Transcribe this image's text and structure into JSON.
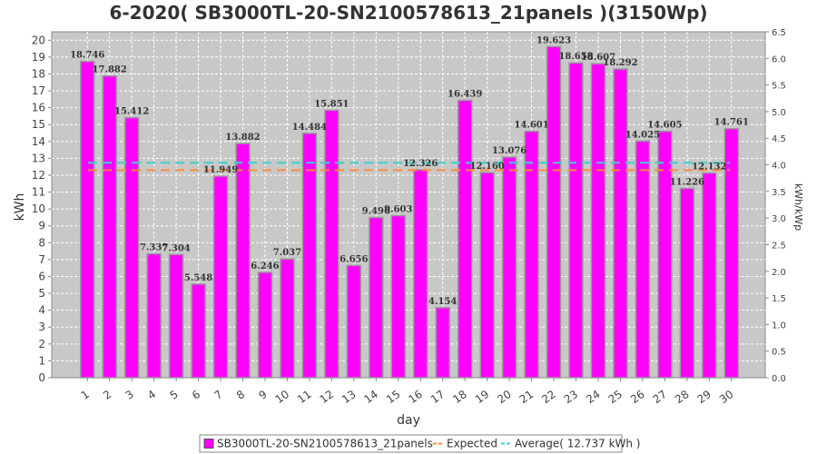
{
  "chart_data": {
    "type": "bar",
    "title": "6-2020( SB3000TL-20-SN2100578613_21panels )(3150Wp)",
    "xlabel": "day",
    "ylabel": "kWh",
    "y2label": "kWh/kWp",
    "categories": [
      "1",
      "2",
      "3",
      "4",
      "5",
      "6",
      "7",
      "8",
      "9",
      "10",
      "11",
      "12",
      "13",
      "14",
      "15",
      "16",
      "17",
      "18",
      "19",
      "20",
      "21",
      "22",
      "23",
      "24",
      "25",
      "26",
      "27",
      "28",
      "29",
      "30"
    ],
    "series": [
      {
        "name": "SB3000TL-20-SN2100578613_21panels",
        "values": [
          18.746,
          17.882,
          15.412,
          7.337,
          7.304,
          5.548,
          11.949,
          13.882,
          6.246,
          7.037,
          14.484,
          15.851,
          6.656,
          9.496,
          9.603,
          12.326,
          4.154,
          16.439,
          12.16,
          13.076,
          14.601,
          19.623,
          18.658,
          18.607,
          18.292,
          14.025,
          14.605,
          11.226,
          12.132,
          14.761
        ],
        "labels": [
          "18.746",
          "17.882",
          "15.412",
          "7.337",
          "7.304",
          "5.548",
          "11.949",
          "13.882",
          "6.246",
          "7.037",
          "14.484",
          "15.851",
          "6.656",
          "9.496",
          "9.603",
          "12.326",
          "4.154",
          "16.439",
          "12.160",
          "13.076",
          "14.601",
          "19.623",
          "18.658",
          "18.607",
          "18.292",
          "14.025",
          "14.605",
          "11.226",
          "12.132",
          "14.761"
        ]
      }
    ],
    "expected": 12.3,
    "average": 12.737,
    "ylim": [
      0,
      20.5
    ],
    "yticks": [
      "0",
      "1",
      "2",
      "3",
      "4",
      "5",
      "6",
      "7",
      "8",
      "9",
      "10",
      "11",
      "12",
      "13",
      "14",
      "15",
      "16",
      "17",
      "18",
      "19",
      "20"
    ],
    "y2lim": [
      0,
      6.5
    ],
    "y2ticks": [
      "0.0",
      "0.5",
      "1.0",
      "1.5",
      "2.0",
      "2.5",
      "3.0",
      "3.5",
      "4.0",
      "4.5",
      "5.0",
      "5.5",
      "6.0",
      "6.5"
    ],
    "grid": true,
    "legend_position": "bottom",
    "legend": [
      {
        "label": "SB3000TL-20-SN2100578613_21panels"
      },
      {
        "label": "Expected"
      },
      {
        "label": "Average( 12.737 kWh )"
      }
    ],
    "colors": {
      "bar": "#ff00ff",
      "bar_edge": "#9a9a9a",
      "expected": "#ff8a3d",
      "average": "#3fcfcf",
      "plot_bg": "#c8c8c8"
    }
  }
}
